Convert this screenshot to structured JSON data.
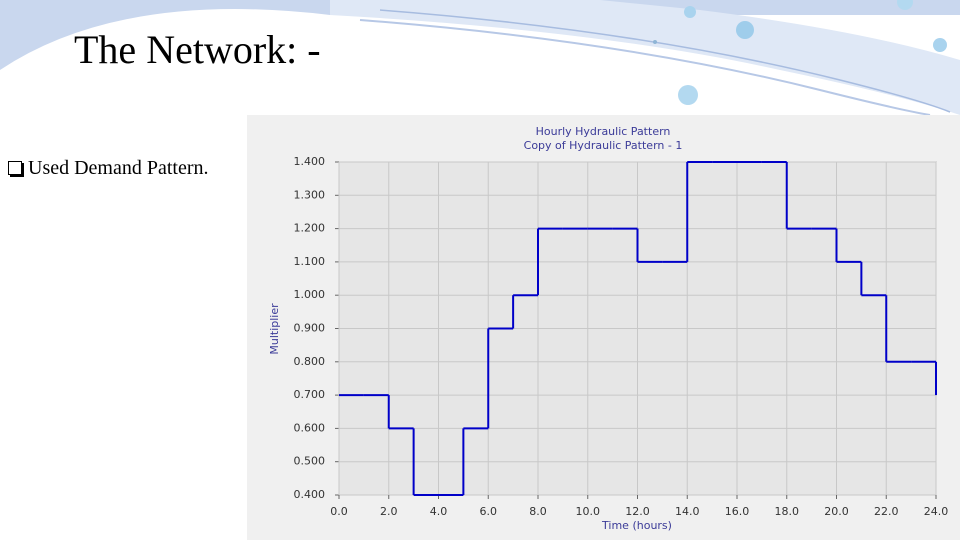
{
  "slide_title": "The Network: -",
  "bullet": "Used Demand Pattern.",
  "chart_data": {
    "type": "line",
    "step": "post",
    "title": "Hourly Hydraulic Pattern",
    "subtitle": "Copy of Hydraulic Pattern - 1",
    "x_label": "Time (hours)",
    "y_label": "Multiplier",
    "x": [
      0,
      1,
      2,
      3,
      4,
      5,
      6,
      7,
      8,
      9,
      10,
      11,
      12,
      13,
      14,
      15,
      16,
      17,
      18,
      19,
      20,
      21,
      22,
      23,
      24
    ],
    "series": [
      {
        "color": "#0000c8",
        "values": [
          0.7,
          0.7,
          0.6,
          0.4,
          0.4,
          0.6,
          0.9,
          1.0,
          1.2,
          1.2,
          1.2,
          1.2,
          1.1,
          1.1,
          1.4,
          1.4,
          1.4,
          1.4,
          1.2,
          1.2,
          1.1,
          1.0,
          0.8,
          0.8,
          0.7
        ]
      }
    ],
    "xlim": [
      0,
      24
    ],
    "xticks": [
      {
        "value": 0,
        "label": "0.0"
      },
      {
        "value": 2,
        "label": "2.0"
      },
      {
        "value": 4,
        "label": "4.0"
      },
      {
        "value": 6,
        "label": "6.0"
      },
      {
        "value": 8,
        "label": "8.0"
      },
      {
        "value": 10,
        "label": "10.0"
      },
      {
        "value": 12,
        "label": "12.0"
      },
      {
        "value": 14,
        "label": "14.0"
      },
      {
        "value": 16,
        "label": "16.0"
      },
      {
        "value": 18,
        "label": "18.0"
      },
      {
        "value": 20,
        "label": "20.0"
      },
      {
        "value": 22,
        "label": "22.0"
      },
      {
        "value": 24,
        "label": "24.0"
      }
    ],
    "ylim": [
      0.4,
      1.4
    ],
    "yticks": [
      {
        "value": 0.4,
        "label": "0.400"
      },
      {
        "value": 0.5,
        "label": "0.500"
      },
      {
        "value": 0.6,
        "label": "0.600"
      },
      {
        "value": 0.7,
        "label": "0.700"
      },
      {
        "value": 0.8,
        "label": "0.800"
      },
      {
        "value": 0.9,
        "label": "0.900"
      },
      {
        "value": 1.0,
        "label": "1.000"
      },
      {
        "value": 1.1,
        "label": "1.100"
      },
      {
        "value": 1.2,
        "label": "1.200"
      },
      {
        "value": 1.3,
        "label": "1.300"
      },
      {
        "value": 1.4,
        "label": "1.400"
      }
    ],
    "grid": true
  }
}
